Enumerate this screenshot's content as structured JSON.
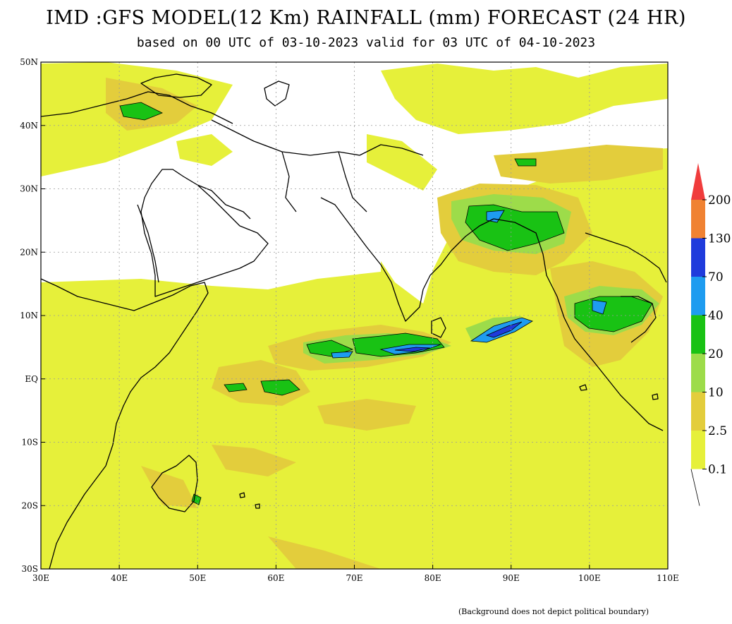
{
  "title": "IMD :GFS MODEL(12 Km) RAINFALL (mm) FORECAST (24 HR)",
  "subtitle": "based on 00 UTC of 03-10-2023 valid for 03 UTC of 04-10-2023",
  "footnote": "(Background does not depict political boundary)",
  "map": {
    "lon_range": [
      30,
      110
    ],
    "lat_range": [
      -30,
      50
    ],
    "lon_ticks": [
      {
        "value": 30,
        "label": "30E"
      },
      {
        "value": 40,
        "label": "40E"
      },
      {
        "value": 50,
        "label": "50E"
      },
      {
        "value": 60,
        "label": "60E"
      },
      {
        "value": 70,
        "label": "70E"
      },
      {
        "value": 80,
        "label": "80E"
      },
      {
        "value": 90,
        "label": "90E"
      },
      {
        "value": 100,
        "label": "100E"
      },
      {
        "value": 110,
        "label": "110E"
      }
    ],
    "lat_ticks": [
      {
        "value": 50,
        "label": "50N"
      },
      {
        "value": 40,
        "label": "40N"
      },
      {
        "value": 30,
        "label": "30N"
      },
      {
        "value": 20,
        "label": "20N"
      },
      {
        "value": 10,
        "label": "10N"
      },
      {
        "value": 0,
        "label": "EQ"
      },
      {
        "value": -10,
        "label": "10S"
      },
      {
        "value": -20,
        "label": "20S"
      },
      {
        "value": -30,
        "label": "30S"
      }
    ],
    "grid": true
  },
  "legend": {
    "levels": [
      {
        "label": "0.1",
        "color": "#e6f03a"
      },
      {
        "label": "2.5",
        "color": "#e3cd3c"
      },
      {
        "label": "10",
        "color": "#9ddc4a"
      },
      {
        "label": "20",
        "color": "#19c214"
      },
      {
        "label": "40",
        "color": "#1e9cf0"
      },
      {
        "label": "70",
        "color": "#1f3bdc"
      },
      {
        "label": "130",
        "color": "#f08232"
      },
      {
        "label": "200",
        "color": "#f03c3c"
      }
    ]
  }
}
